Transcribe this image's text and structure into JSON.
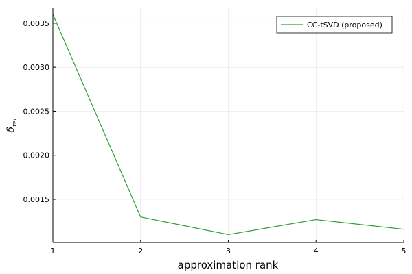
{
  "chart_data": {
    "type": "line",
    "xlabel": "approximation rank",
    "ylabel": {
      "main": "δ",
      "sub": "rel"
    },
    "x": [
      1,
      2,
      3,
      4,
      5
    ],
    "xlim": [
      1,
      5
    ],
    "ylim": [
      0.00101,
      0.00367
    ],
    "xticks": [
      "1",
      "2",
      "3",
      "4",
      "5"
    ],
    "yticks": [
      "0.0015",
      "0.0020",
      "0.0025",
      "0.0030",
      "0.0035"
    ],
    "grid": true,
    "legend": "top-right",
    "series": [
      {
        "name": "CC-tSVD (proposed)",
        "color": "#2ca02c",
        "values": [
          0.0036,
          0.0013,
          0.0011,
          0.00127,
          0.00116
        ]
      }
    ]
  }
}
